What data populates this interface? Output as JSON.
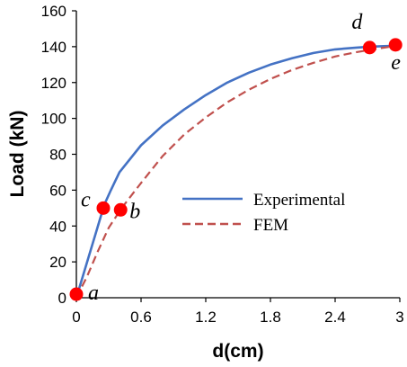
{
  "chart_data": {
    "type": "line",
    "xlabel": "d(cm)",
    "ylabel": "Load (kN)",
    "xlim": [
      0,
      3
    ],
    "ylim": [
      0,
      160
    ],
    "x_ticks": [
      "0",
      "0.6",
      "1.2",
      "1.8",
      "2.4",
      "3"
    ],
    "y_ticks": [
      "0",
      "20",
      "40",
      "60",
      "80",
      "100",
      "120",
      "140",
      "160"
    ],
    "grid": false,
    "legend_position": "center-right",
    "series": [
      {
        "name": "Experimental",
        "color": "#4472C4",
        "style": "solid",
        "x": [
          0,
          0.1,
          0.2,
          0.26,
          0.32,
          0.4,
          0.6,
          0.8,
          1.0,
          1.2,
          1.4,
          1.6,
          1.8,
          2.0,
          2.2,
          2.4,
          2.6,
          2.72,
          2.85,
          2.97
        ],
        "y": [
          0,
          20,
          40,
          52,
          60,
          70,
          85,
          96,
          105,
          113,
          120,
          125.5,
          130,
          133.5,
          136.5,
          138.5,
          139.5,
          140,
          140.3,
          140.5
        ]
      },
      {
        "name": "FEM",
        "color": "#C0504D",
        "style": "dashed",
        "x": [
          0,
          0.1,
          0.2,
          0.3,
          0.42,
          0.6,
          0.8,
          1.0,
          1.2,
          1.4,
          1.6,
          1.8,
          2.0,
          2.2,
          2.4,
          2.6,
          2.8,
          2.97
        ],
        "y": [
          0,
          12,
          26,
          39,
          50,
          64,
          79,
          91,
          100.5,
          109,
          116,
          122,
          127,
          131,
          134.5,
          137,
          139,
          140.5
        ]
      }
    ],
    "points": [
      {
        "label": "a",
        "x": 0.0,
        "y": 2
      },
      {
        "label": "b",
        "x": 0.41,
        "y": 49
      },
      {
        "label": "c",
        "x": 0.25,
        "y": 50
      },
      {
        "label": "d",
        "x": 2.72,
        "y": 139.5
      },
      {
        "label": "e",
        "x": 2.96,
        "y": 141
      }
    ],
    "point_color": "#FF0000"
  }
}
